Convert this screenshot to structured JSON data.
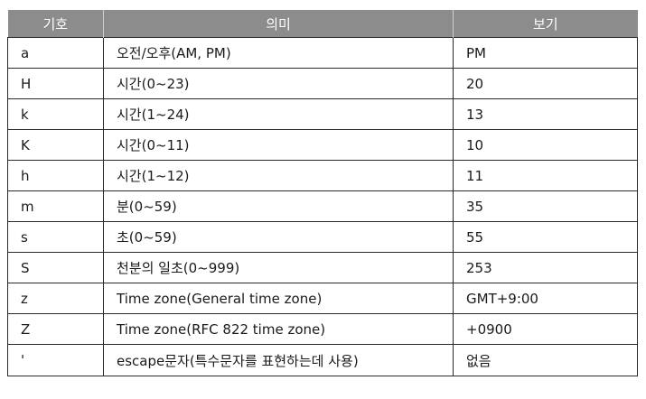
{
  "table": {
    "headers": [
      "기호",
      "의미",
      "보기"
    ],
    "rows": [
      [
        "a",
        "오전/오후(AM, PM)",
        "PM"
      ],
      [
        "H",
        "시간(0~23)",
        "20"
      ],
      [
        "k",
        "시간(1~24)",
        "13"
      ],
      [
        "K",
        "시간(0~11)",
        "10"
      ],
      [
        "h",
        "시간(1~12)",
        "11"
      ],
      [
        "m",
        "분(0~59)",
        "35"
      ],
      [
        "s",
        "초(0~59)",
        "55"
      ],
      [
        "S",
        "천분의 일초(0~999)",
        "253"
      ],
      [
        "z",
        "Time zone(General time zone)",
        "GMT+9:00"
      ],
      [
        "Z",
        "Time zone(RFC 822 time zone)",
        "+0900"
      ],
      [
        "'",
        "escape문자(특수문자를 표현하는데 사용)",
        "없음"
      ]
    ]
  }
}
